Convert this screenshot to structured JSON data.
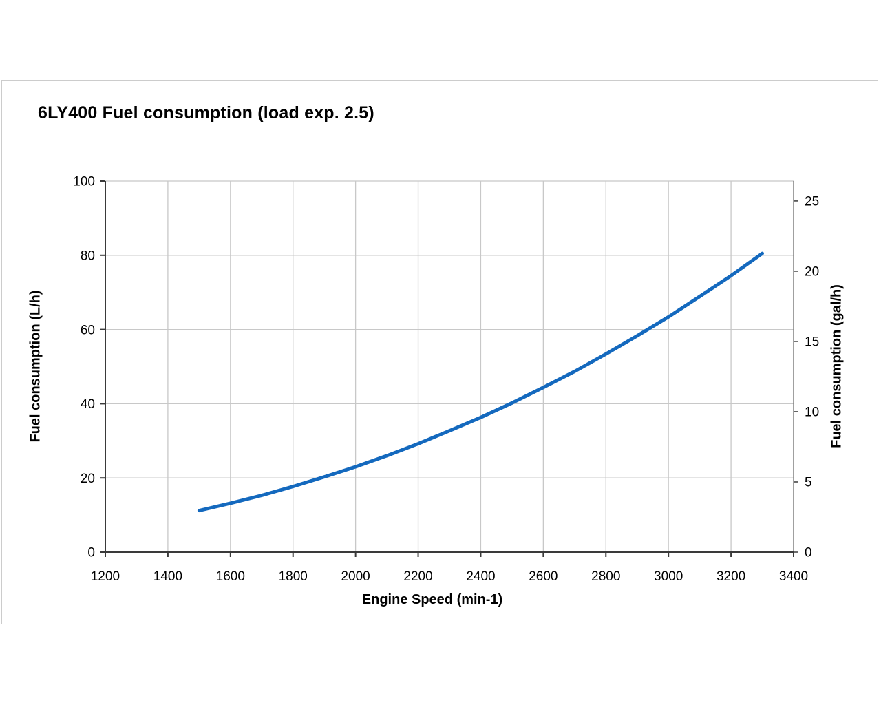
{
  "page": {
    "title": "6LY400 Fuel consumption (load exp. 2.5)"
  },
  "chart_data": {
    "type": "line",
    "title": "6LY400 Fuel consumption (load exp. 2.5)",
    "xlabel": "Engine Speed (min-1)",
    "ylabel_left": "Fuel consumption (L/h)",
    "ylabel_right": "Fuel consumption (gal/h)",
    "xlim": [
      1200,
      3400
    ],
    "ylim_left": [
      0,
      100
    ],
    "ylim_right": [
      0,
      26.4
    ],
    "x_ticks": [
      1200,
      1400,
      1600,
      1800,
      2000,
      2200,
      2400,
      2600,
      2800,
      3000,
      3200,
      3400
    ],
    "y_ticks_left": [
      0,
      20,
      40,
      60,
      80,
      100
    ],
    "y_ticks_right": [
      0,
      5,
      10,
      15,
      20,
      25
    ],
    "liters_per_gallon": 3.785412,
    "grid": true,
    "legend": "none",
    "series": [
      {
        "name": "Fuel consumption",
        "x": [
          1500,
          1600,
          1700,
          1800,
          1900,
          2000,
          2100,
          2200,
          2300,
          2400,
          2500,
          2600,
          2700,
          2800,
          2900,
          3000,
          3100,
          3200,
          3300
        ],
        "y_lph": [
          11.2,
          13.2,
          15.3,
          17.7,
          20.3,
          23.0,
          26.0,
          29.2,
          32.7,
          36.3,
          40.2,
          44.4,
          48.7,
          53.4,
          58.3,
          63.4,
          68.9,
          74.5,
          80.5
        ],
        "color": "#1469be"
      }
    ],
    "colors": {
      "curve": "#1469be",
      "grid": "#c8c8c8",
      "spine_dark": "#3a3a3a",
      "spine_right": "#808080",
      "tick_label": "#000000",
      "background": "#ffffff",
      "frame_border": "#cccccc"
    }
  }
}
